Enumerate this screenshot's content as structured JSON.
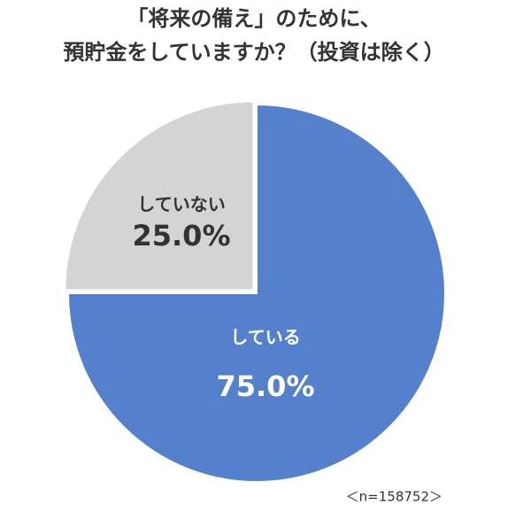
{
  "chart_data": {
    "type": "pie",
    "title": [
      "「将来の備え」のために、",
      "預貯金をしていますか？（投資は除く）"
    ],
    "categories": [
      "している",
      "していない"
    ],
    "values": [
      75.0,
      25.0
    ],
    "value_labels": [
      "75.0%",
      "25.0%"
    ],
    "colors": [
      "#5580cc",
      "#d4d4d4"
    ],
    "note": "＜n=158752＞"
  }
}
